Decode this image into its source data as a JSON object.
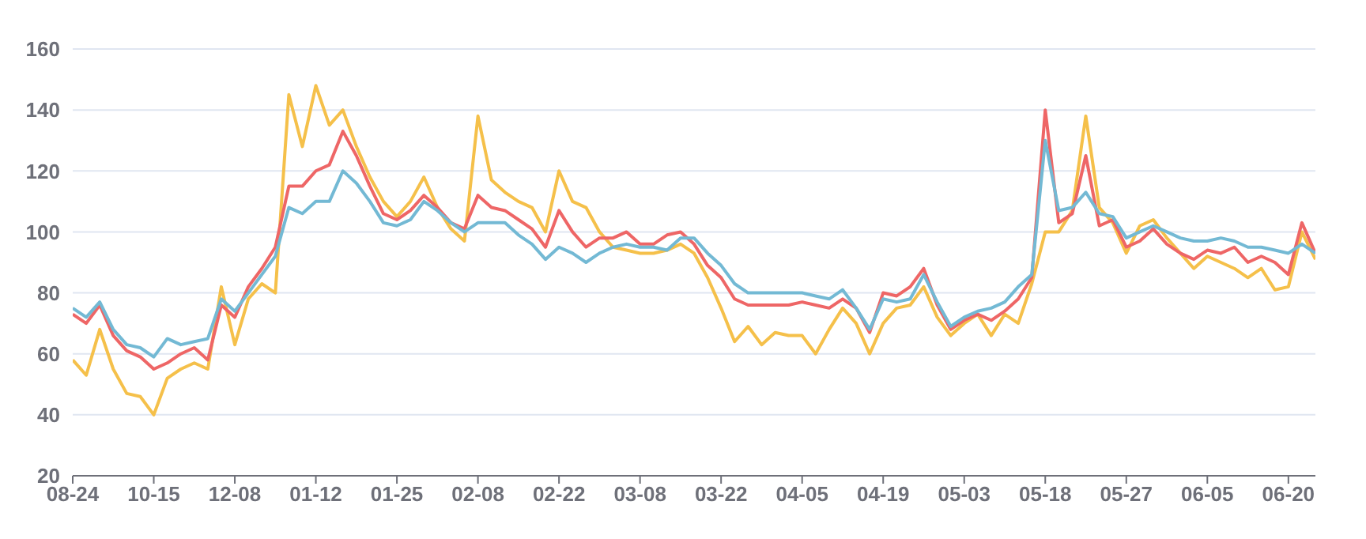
{
  "chart_data": {
    "type": "line",
    "categories": [
      "08-24",
      null,
      null,
      null,
      null,
      null,
      "10-15",
      null,
      null,
      null,
      null,
      null,
      "12-08",
      null,
      null,
      null,
      null,
      null,
      "01-12",
      null,
      null,
      null,
      null,
      null,
      "01-25",
      null,
      null,
      null,
      null,
      null,
      "02-08",
      null,
      null,
      null,
      null,
      null,
      "02-22",
      null,
      null,
      null,
      null,
      null,
      "03-08",
      null,
      null,
      null,
      null,
      null,
      "03-22",
      null,
      null,
      null,
      null,
      null,
      "04-05",
      null,
      null,
      null,
      null,
      null,
      "04-19",
      null,
      null,
      null,
      null,
      null,
      "05-03",
      null,
      null,
      null,
      null,
      null,
      "05-18",
      null,
      null,
      null,
      null,
      null,
      "05-27",
      null,
      null,
      null,
      null,
      null,
      "06-05",
      null,
      null,
      null,
      null,
      null,
      "06-20",
      null,
      null
    ],
    "series": [
      {
        "color": "#f5c04a",
        "values": [
          58,
          53,
          68,
          55,
          47,
          46,
          40,
          52,
          55,
          57,
          55,
          82,
          63,
          78,
          83,
          80,
          145,
          128,
          148,
          135,
          140,
          128,
          118,
          110,
          105,
          110,
          118,
          108,
          101,
          97,
          138,
          117,
          113,
          110,
          108,
          100,
          120,
          110,
          108,
          100,
          95,
          94,
          93,
          93,
          94,
          96,
          93,
          85,
          75,
          64,
          69,
          63,
          67,
          66,
          66,
          60,
          68,
          75,
          70,
          60,
          70,
          75,
          76,
          82,
          72,
          66,
          70,
          73,
          66,
          73,
          70,
          83,
          100,
          100,
          107,
          138,
          108,
          103,
          93,
          102,
          104,
          98,
          93,
          88,
          92,
          90,
          88,
          85,
          88,
          81,
          82,
          100,
          91
        ]
      },
      {
        "color": "#ee6666",
        "values": [
          73,
          70,
          76,
          66,
          61,
          59,
          55,
          57,
          60,
          62,
          58,
          76,
          72,
          82,
          88,
          95,
          115,
          115,
          120,
          122,
          133,
          125,
          115,
          106,
          104,
          107,
          112,
          108,
          103,
          101,
          112,
          108,
          107,
          104,
          101,
          95,
          107,
          100,
          95,
          98,
          98,
          100,
          96,
          96,
          99,
          100,
          96,
          89,
          85,
          78,
          76,
          76,
          76,
          76,
          77,
          76,
          75,
          78,
          75,
          67,
          80,
          79,
          82,
          88,
          76,
          68,
          71,
          73,
          71,
          74,
          78,
          85,
          140,
          103,
          106,
          125,
          102,
          104,
          95,
          97,
          101,
          96,
          93,
          91,
          94,
          93,
          95,
          90,
          92,
          90,
          86,
          103,
          93
        ]
      },
      {
        "color": "#73b9d4",
        "values": [
          75,
          72,
          77,
          68,
          63,
          62,
          59,
          65,
          63,
          64,
          65,
          78,
          74,
          80,
          86,
          92,
          108,
          106,
          110,
          110,
          120,
          116,
          110,
          103,
          102,
          104,
          110,
          107,
          103,
          100,
          103,
          103,
          103,
          99,
          96,
          91,
          95,
          93,
          90,
          93,
          95,
          96,
          95,
          95,
          94,
          98,
          98,
          93,
          89,
          83,
          80,
          80,
          80,
          80,
          80,
          79,
          78,
          81,
          75,
          68,
          78,
          77,
          78,
          86,
          77,
          69,
          72,
          74,
          75,
          77,
          82,
          86,
          130,
          107,
          108,
          113,
          106,
          105,
          98,
          100,
          102,
          100,
          98,
          97,
          97,
          98,
          97,
          95,
          95,
          94,
          93,
          96,
          93
        ]
      }
    ],
    "ylim": [
      20,
      160
    ],
    "yticks": [
      20,
      40,
      60,
      80,
      100,
      120,
      140,
      160
    ],
    "grid": "y",
    "legend": false
  }
}
